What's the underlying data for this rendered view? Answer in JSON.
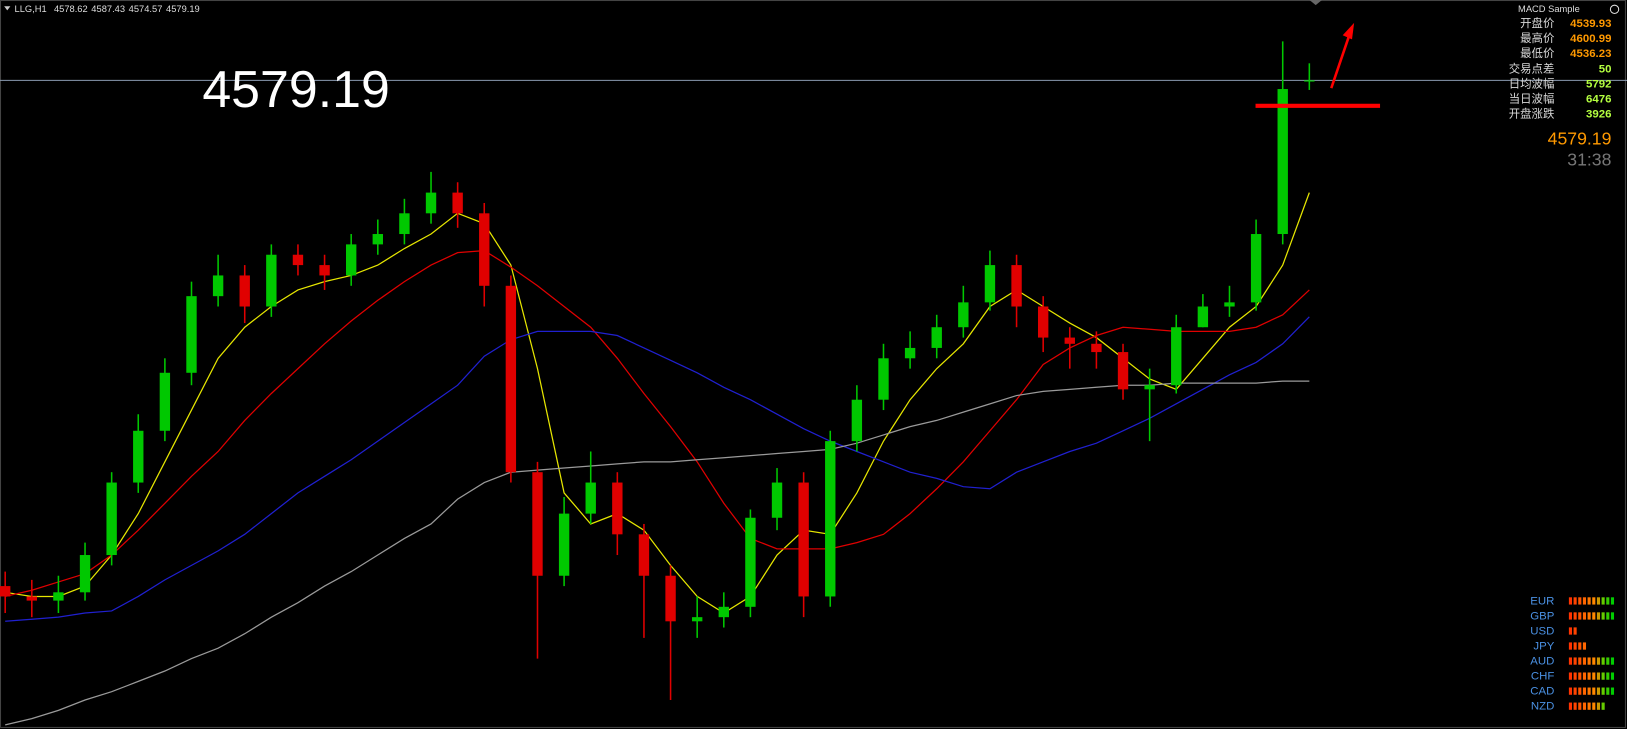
{
  "header": {
    "symbol": "LLG,H1",
    "ohlc": [
      4578.62,
      4587.43,
      4574.57,
      4579.19
    ]
  },
  "expert": "MACD Sample",
  "price_label": "4579.19",
  "chart_data": {
    "type": "candlestick",
    "ylim": [
      4266,
      4618
    ],
    "up_color": "#00c800",
    "down_color": "#e00000",
    "open": [
      4335,
      4330,
      4328,
      4332,
      4350,
      4385,
      4410,
      4438,
      4475,
      4485,
      4470,
      4495,
      4490,
      4485,
      4500,
      4505,
      4515,
      4525,
      4515,
      4480,
      4390,
      4340,
      4370,
      4385,
      4360,
      4340,
      4318,
      4320,
      4325,
      4368,
      4385,
      4330,
      4405,
      4425,
      4445,
      4450,
      4460,
      4472,
      4490,
      4470,
      4455,
      4452,
      4448,
      4430,
      4432,
      4460,
      4470,
      4472,
      4505,
      4578.62
    ],
    "high": [
      4342,
      4338,
      4340,
      4356,
      4390,
      4418,
      4445,
      4482,
      4495,
      4490,
      4500,
      4500,
      4495,
      4505,
      4512,
      4522,
      4535,
      4530,
      4520,
      4485,
      4395,
      4378,
      4400,
      4390,
      4365,
      4345,
      4330,
      4332,
      4372,
      4392,
      4390,
      4410,
      4432,
      4452,
      4458,
      4466,
      4480,
      4497,
      4495,
      4475,
      4460,
      4458,
      4452,
      4440,
      4466,
      4476,
      4480,
      4512,
      4598,
      4587.43
    ],
    "low": [
      4322,
      4320,
      4322,
      4328,
      4345,
      4380,
      4405,
      4432,
      4470,
      4462,
      4465,
      4485,
      4478,
      4480,
      4495,
      4500,
      4510,
      4508,
      4470,
      4385,
      4300,
      4335,
      4365,
      4350,
      4310,
      4280,
      4310,
      4315,
      4320,
      4362,
      4320,
      4325,
      4400,
      4420,
      4440,
      4445,
      4455,
      4468,
      4460,
      4448,
      4440,
      4440,
      4425,
      4405,
      4428,
      4460,
      4465,
      4468,
      4500,
      4574.57
    ],
    "close": [
      4330,
      4328,
      4332,
      4350,
      4385,
      4410,
      4438,
      4475,
      4485,
      4470,
      4495,
      4490,
      4485,
      4500,
      4505,
      4515,
      4525,
      4515,
      4480,
      4390,
      4340,
      4370,
      4385,
      4360,
      4340,
      4318,
      4320,
      4325,
      4368,
      4385,
      4330,
      4405,
      4425,
      4445,
      4450,
      4460,
      4472,
      4490,
      4470,
      4455,
      4452,
      4448,
      4430,
      4432,
      4460,
      4470,
      4472,
      4505,
      4575,
      4579.19
    ],
    "series": [
      {
        "color": "#e6e600",
        "values": [
          4332,
          4330,
          4330,
          4335,
          4350,
          4370,
          4395,
          4420,
          4445,
          4460,
          4470,
          4478,
          4482,
          4485,
          4490,
          4498,
          4505,
          4515,
          4510,
          4490,
          4440,
          4380,
          4365,
          4370,
          4362,
          4345,
          4330,
          4322,
          4330,
          4350,
          4362,
          4360,
          4380,
          4405,
          4425,
          4440,
          4452,
          4470,
          4478,
          4470,
          4462,
          4455,
          4445,
          4435,
          4430,
          4445,
          4460,
          4470,
          4490,
          4525
        ]
      },
      {
        "color": "#e00000",
        "values": [
          4330,
          4333,
          4337,
          4341,
          4350,
          4362,
          4375,
          4388,
          4400,
          4415,
          4428,
          4440,
          4452,
          4463,
          4473,
          4482,
          4490,
          4496,
          4497,
          4489,
          4480,
          4470,
          4460,
          4445,
          4428,
          4412,
          4395,
          4375,
          4358,
          4353,
          4353,
          4353,
          4356,
          4360,
          4370,
          4382,
          4395,
          4410,
          4425,
          4442,
          4450,
          4456,
          4460,
          4459,
          4458,
          4458,
          4458,
          4460,
          4466,
          4478
        ]
      },
      {
        "color": "#2020d0",
        "values": [
          4318,
          4319,
          4320,
          4322,
          4323,
          4330,
          4338,
          4345,
          4352,
          4360,
          4370,
          4380,
          4388,
          4396,
          4405,
          4414,
          4423,
          4432,
          4446,
          4454,
          4458,
          4458,
          4458,
          4456,
          4450,
          4444,
          4438,
          4431,
          4425,
          4418,
          4411,
          4405,
          4400,
          4395,
          4390,
          4387,
          4383,
          4382,
          4390,
          4395,
          4400,
          4404,
          4410,
          4416,
          4423,
          4430,
          4437,
          4443,
          4452,
          4465
        ]
      },
      {
        "color": "#9a9a9a",
        "values": [
          4268,
          4271,
          4275,
          4280,
          4284,
          4289,
          4294,
          4300,
          4305,
          4312,
          4320,
          4327,
          4335,
          4342,
          4350,
          4358,
          4365,
          4377,
          4385,
          4390,
          4391,
          4392,
          4393,
          4394,
          4395,
          4395,
          4396,
          4397,
          4398,
          4399,
          4400,
          4401,
          4404,
          4408,
          4412,
          4415,
          4419,
          4423,
          4427,
          4429,
          4430,
          4431,
          4432,
          4432,
          4433,
          4433,
          4433,
          4433,
          4434,
          4434
        ]
      }
    ]
  },
  "info_panel": {
    "rows": [
      {
        "label": "开盘价",
        "value": 4539.93
      },
      {
        "label": "最高价",
        "value": 4600.99
      },
      {
        "label": "最低价",
        "value": 4536.23
      },
      {
        "label": "交易点差",
        "value": 50
      },
      {
        "label": "日均波幅",
        "value": 5792
      },
      {
        "label": "当日波幅",
        "value": 6476
      },
      {
        "label": "开盘涨跌",
        "value": 3926
      }
    ]
  },
  "price": 4579.19,
  "timer": "31:38",
  "currency_strength": [
    {
      "name": "EUR",
      "strength": 10
    },
    {
      "name": "GBP",
      "strength": 10
    },
    {
      "name": "USD",
      "strength": 2
    },
    {
      "name": "JPY",
      "strength": 4
    },
    {
      "name": "AUD",
      "strength": 10
    },
    {
      "name": "CHF",
      "strength": 10
    },
    {
      "name": "CAD",
      "strength": 10
    },
    {
      "name": "NZD",
      "strength": 8
    }
  ]
}
